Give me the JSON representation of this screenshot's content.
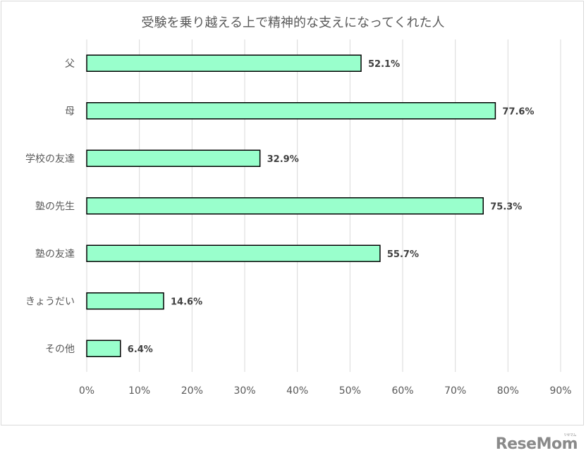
{
  "chart_data": {
    "type": "bar",
    "orientation": "horizontal",
    "title": "受験を乗り越える上で精神的な支えになってくれた人",
    "categories": [
      "父",
      "母",
      "学校の友達",
      "塾の先生",
      "塾の友達",
      "きょうだい",
      "その他"
    ],
    "values": [
      52.1,
      77.6,
      32.9,
      75.3,
      55.7,
      14.6,
      6.4
    ],
    "data_labels": [
      "52.1%",
      "77.6%",
      "32.9%",
      "75.3%",
      "55.7%",
      "14.6%",
      "6.4%"
    ],
    "xlim": [
      0,
      90
    ],
    "x_ticks": [
      0,
      10,
      20,
      30,
      40,
      50,
      60,
      70,
      80,
      90
    ],
    "x_tick_labels": [
      "0%",
      "10%",
      "20%",
      "30%",
      "40%",
      "50%",
      "60%",
      "70%",
      "80%",
      "90%"
    ],
    "grid": "vertical",
    "legend": "none",
    "colors": {
      "bar_fill": "#99FFCC",
      "bar_stroke": "#000000",
      "grid": "#d9d9d9"
    }
  },
  "watermark": {
    "text": "ReseMom",
    "sub": "リセマム"
  }
}
